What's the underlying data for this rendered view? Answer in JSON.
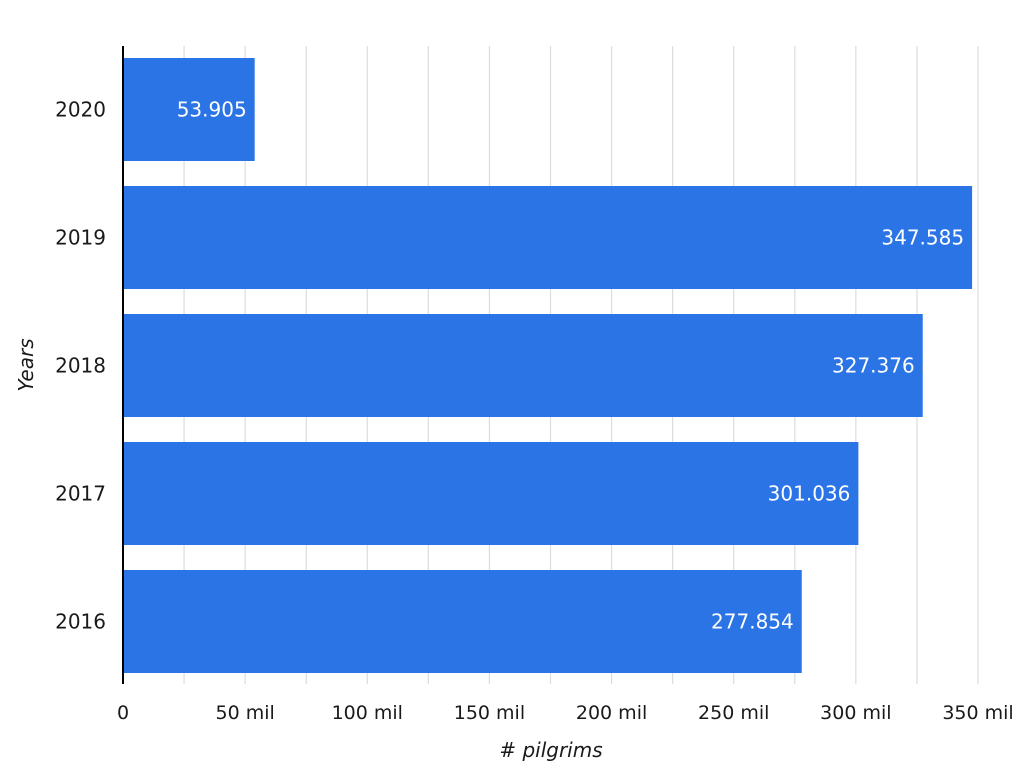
{
  "chart_data": {
    "type": "bar",
    "orientation": "horizontal",
    "categories": [
      "2020",
      "2019",
      "2018",
      "2017",
      "2016"
    ],
    "values": [
      53905,
      347585,
      327376,
      301036,
      277854
    ],
    "data_labels": [
      "53.905",
      "347.585",
      "327.376",
      "301.036",
      "277.854"
    ],
    "title": "",
    "xlabel": "# pilgrims",
    "ylabel": "Years",
    "xlim": [
      0,
      365000
    ],
    "x_ticks": [
      0,
      50000,
      100000,
      150000,
      200000,
      250000,
      300000,
      350000
    ],
    "x_tick_labels": [
      "0",
      "50 mil",
      "100 mil",
      "150 mil",
      "200 mil",
      "250 mil",
      "300 mil",
      "350 mil"
    ],
    "grid": "vertical",
    "legend": "none",
    "colors": {
      "bar": "#2b74e6",
      "grid": "#dcdcdc",
      "axis": "#000000"
    }
  }
}
